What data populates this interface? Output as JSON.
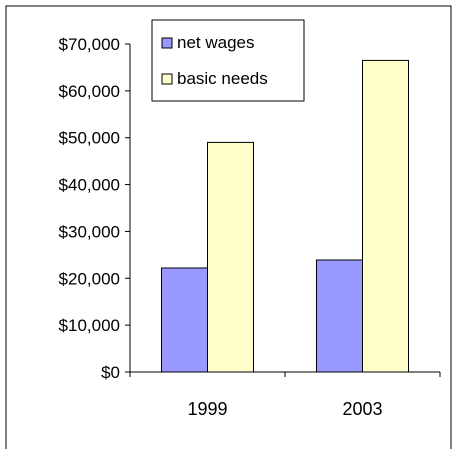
{
  "chart_data": {
    "type": "bar",
    "categories": [
      "1999",
      "2003"
    ],
    "series": [
      {
        "name": "net wages",
        "values": [
          22200,
          23900
        ],
        "color": "#9999ff"
      },
      {
        "name": "basic needs",
        "values": [
          49000,
          66500
        ],
        "color": "#ffffcc"
      }
    ],
    "y_tick_labels": [
      "$0",
      "$10,000",
      "$20,000",
      "$30,000",
      "$40,000",
      "$50,000",
      "$60,000",
      "$70,000"
    ],
    "ylim": [
      0,
      70000
    ],
    "y_step": 10000,
    "title": "",
    "xlabel": "",
    "ylabel": "",
    "legend_position": "top-center",
    "grid": false
  }
}
